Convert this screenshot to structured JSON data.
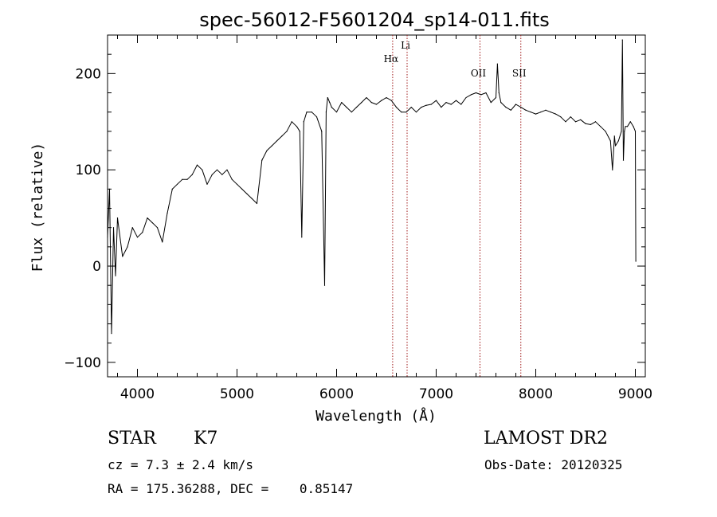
{
  "chart_data": {
    "type": "line",
    "title": "spec-56012-F5601204_sp14-011.fits",
    "xlabel": "Wavelength (Å)",
    "ylabel": "Flux (relative)",
    "xlim": [
      3700,
      9100
    ],
    "ylim": [
      -115,
      240
    ],
    "xticks": [
      4000,
      5000,
      6000,
      7000,
      8000,
      9000
    ],
    "yticks": [
      -100,
      0,
      100,
      200
    ],
    "grid": false,
    "series": [
      {
        "x": [
          3700,
          3720,
          3740,
          3760,
          3780,
          3800,
          3850,
          3900,
          3950,
          4000,
          4050,
          4100,
          4150,
          4200,
          4250,
          4300,
          4350,
          4400,
          4450,
          4500,
          4550,
          4600,
          4650,
          4700,
          4750,
          4800,
          4850,
          4900,
          4950,
          5000,
          5050,
          5100,
          5150,
          5200,
          5250,
          5300,
          5350,
          5400,
          5450,
          5500,
          5550,
          5600,
          5630,
          5650,
          5670,
          5700,
          5750,
          5800,
          5850,
          5880,
          5895,
          5910,
          5930,
          5950,
          6000,
          6050,
          6100,
          6150,
          6200,
          6250,
          6300,
          6350,
          6400,
          6450,
          6500,
          6550,
          6600,
          6650,
          6700,
          6750,
          6800,
          6850,
          6900,
          6950,
          7000,
          7050,
          7100,
          7150,
          7200,
          7250,
          7300,
          7350,
          7400,
          7450,
          7500,
          7550,
          7600,
          7615,
          7630,
          7650,
          7700,
          7750,
          7800,
          7850,
          7900,
          7950,
          8000,
          8050,
          8100,
          8150,
          8200,
          8250,
          8300,
          8350,
          8400,
          8450,
          8500,
          8550,
          8600,
          8650,
          8700,
          8750,
          8770,
          8790,
          8800,
          8830,
          8860,
          8870,
          8880,
          8890,
          8900,
          8920,
          8950,
          8980,
          9000,
          9005
        ],
        "values": [
          30,
          80,
          -70,
          40,
          -10,
          50,
          10,
          20,
          40,
          30,
          35,
          50,
          45,
          40,
          25,
          55,
          80,
          85,
          90,
          90,
          95,
          105,
          100,
          85,
          95,
          100,
          95,
          100,
          90,
          85,
          80,
          75,
          70,
          65,
          110,
          120,
          125,
          130,
          135,
          140,
          150,
          145,
          140,
          30,
          150,
          160,
          160,
          155,
          140,
          -20,
          160,
          175,
          170,
          165,
          160,
          170,
          165,
          160,
          165,
          170,
          175,
          170,
          168,
          172,
          175,
          172,
          165,
          160,
          160,
          165,
          160,
          165,
          167,
          168,
          172,
          165,
          170,
          168,
          172,
          168,
          175,
          178,
          180,
          178,
          180,
          170,
          175,
          210,
          180,
          170,
          165,
          162,
          168,
          165,
          162,
          160,
          158,
          160,
          162,
          160,
          158,
          155,
          150,
          155,
          150,
          152,
          148,
          147,
          150,
          145,
          140,
          130,
          100,
          135,
          125,
          130,
          140,
          235,
          110,
          140,
          145,
          145,
          150,
          145,
          140,
          5
        ]
      }
    ],
    "annotations": [
      {
        "label": "Hα",
        "x": 6563
      },
      {
        "label": "Li",
        "x": 6708
      },
      {
        "label": "OII",
        "x": 7440
      },
      {
        "label": "SII",
        "x": 7850
      }
    ]
  },
  "info": {
    "type": "STAR",
    "subclass": "K7",
    "survey": "LAMOST DR2",
    "cz": "cz = 7.3 ± 2.4 km/s",
    "obs_date": "Obs-Date: 20120325",
    "radec": "RA = 175.36288, DEC =    0.85147"
  }
}
